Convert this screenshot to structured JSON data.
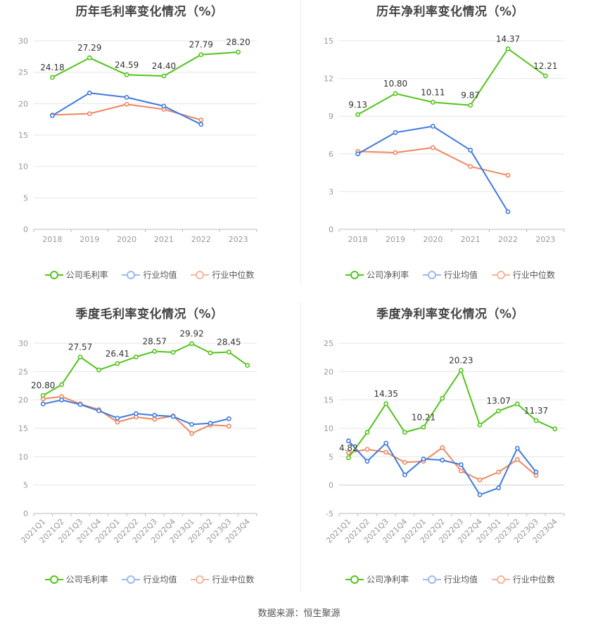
{
  "colors": {
    "company": "#52c41a",
    "avg": "#3f7ae0",
    "median": "#f08660",
    "grid": "#e6e6e6",
    "axis": "#999999",
    "label": "#333333"
  },
  "source": "数据来源：恒生聚源",
  "chart_data": [
    {
      "type": "line",
      "title": "历年毛利率变化情况（%）",
      "categories": [
        "2018",
        "2019",
        "2020",
        "2021",
        "2022",
        "2023"
      ],
      "ylim": [
        0,
        30
      ],
      "yticks": [
        0,
        5,
        10,
        15,
        20,
        25,
        30
      ],
      "grid": true,
      "legend_position": "bottom",
      "series": [
        {
          "name": "公司毛利率",
          "values": [
            24.18,
            27.29,
            24.59,
            24.4,
            27.79,
            28.2
          ],
          "labels": [
            "24.18",
            "27.29",
            "24.59",
            "24.40",
            "27.79",
            "28.20"
          ]
        },
        {
          "name": "行业均值",
          "values": [
            18.1,
            21.7,
            21.0,
            19.6,
            16.7,
            null
          ]
        },
        {
          "name": "行业中位数",
          "values": [
            18.2,
            18.4,
            19.9,
            19.1,
            17.4,
            null
          ]
        }
      ]
    },
    {
      "type": "line",
      "title": "历年净利率变化情况（%）",
      "categories": [
        "2018",
        "2019",
        "2020",
        "2021",
        "2022",
        "2023"
      ],
      "ylim": [
        0,
        15
      ],
      "yticks": [
        0,
        3,
        6,
        9,
        12,
        15
      ],
      "grid": true,
      "legend_position": "bottom",
      "series": [
        {
          "name": "公司净利率",
          "values": [
            9.13,
            10.8,
            10.11,
            9.87,
            14.37,
            12.21
          ],
          "labels": [
            "9.13",
            "10.80",
            "10.11",
            "9.87",
            "14.37",
            "12.21"
          ]
        },
        {
          "name": "行业均值",
          "values": [
            6.0,
            7.7,
            8.2,
            6.3,
            1.4,
            null
          ]
        },
        {
          "name": "行业中位数",
          "values": [
            6.2,
            6.1,
            6.5,
            5.0,
            4.3,
            null
          ]
        }
      ]
    },
    {
      "type": "line",
      "title": "季度毛利率变化情况（%）",
      "categories": [
        "2021Q1",
        "2021Q2",
        "2021Q3",
        "2021Q4",
        "2022Q1",
        "2022Q2",
        "2022Q3",
        "2022Q4",
        "2023Q1",
        "2023Q2",
        "2023Q3",
        "2023Q4"
      ],
      "ylim": [
        0,
        30
      ],
      "yticks": [
        0,
        5,
        10,
        15,
        20,
        25,
        30
      ],
      "grid": true,
      "legend_position": "bottom",
      "series": [
        {
          "name": "公司毛利率",
          "values": [
            20.8,
            22.7,
            27.57,
            25.3,
            26.41,
            27.6,
            28.57,
            28.4,
            29.92,
            28.3,
            28.45,
            26.1
          ],
          "labels": [
            "20.80",
            "",
            "27.57",
            "",
            "26.41",
            "",
            "28.57",
            "",
            "29.92",
            "",
            "28.45",
            ""
          ]
        },
        {
          "name": "行业均值",
          "values": [
            19.3,
            20.0,
            19.2,
            18.1,
            16.8,
            17.6,
            17.3,
            17.1,
            15.7,
            15.9,
            16.7,
            null
          ]
        },
        {
          "name": "行业中位数",
          "values": [
            20.2,
            20.6,
            19.3,
            18.3,
            16.1,
            17.0,
            16.6,
            17.2,
            14.1,
            15.6,
            15.4,
            null
          ]
        }
      ]
    },
    {
      "type": "line",
      "title": "季度净利率变化情况（%）",
      "categories": [
        "2021Q1",
        "2021Q2",
        "2021Q3",
        "2021Q4",
        "2022Q1",
        "2022Q2",
        "2022Q3",
        "2022Q4",
        "2023Q1",
        "2023Q2",
        "2023Q3",
        "2023Q4"
      ],
      "ylim": [
        -5,
        25
      ],
      "yticks": [
        -5,
        0,
        5,
        10,
        15,
        20,
        25
      ],
      "grid": true,
      "legend_position": "bottom",
      "series": [
        {
          "name": "公司净利率",
          "values": [
            4.82,
            9.3,
            14.35,
            9.3,
            10.21,
            15.3,
            20.23,
            10.6,
            13.07,
            14.3,
            11.37,
            9.9
          ],
          "labels": [
            "4.82",
            "",
            "14.35",
            "",
            "10.21",
            "",
            "20.23",
            "",
            "13.07",
            "",
            "11.37",
            ""
          ]
        },
        {
          "name": "行业均值",
          "values": [
            7.8,
            4.2,
            7.4,
            1.8,
            4.6,
            4.4,
            3.6,
            -1.7,
            -0.5,
            6.5,
            2.3,
            null
          ]
        },
        {
          "name": "行业中位数",
          "values": [
            5.7,
            6.3,
            5.8,
            4.0,
            4.2,
            6.6,
            2.5,
            0.9,
            2.3,
            4.5,
            1.7,
            null
          ]
        }
      ]
    }
  ]
}
